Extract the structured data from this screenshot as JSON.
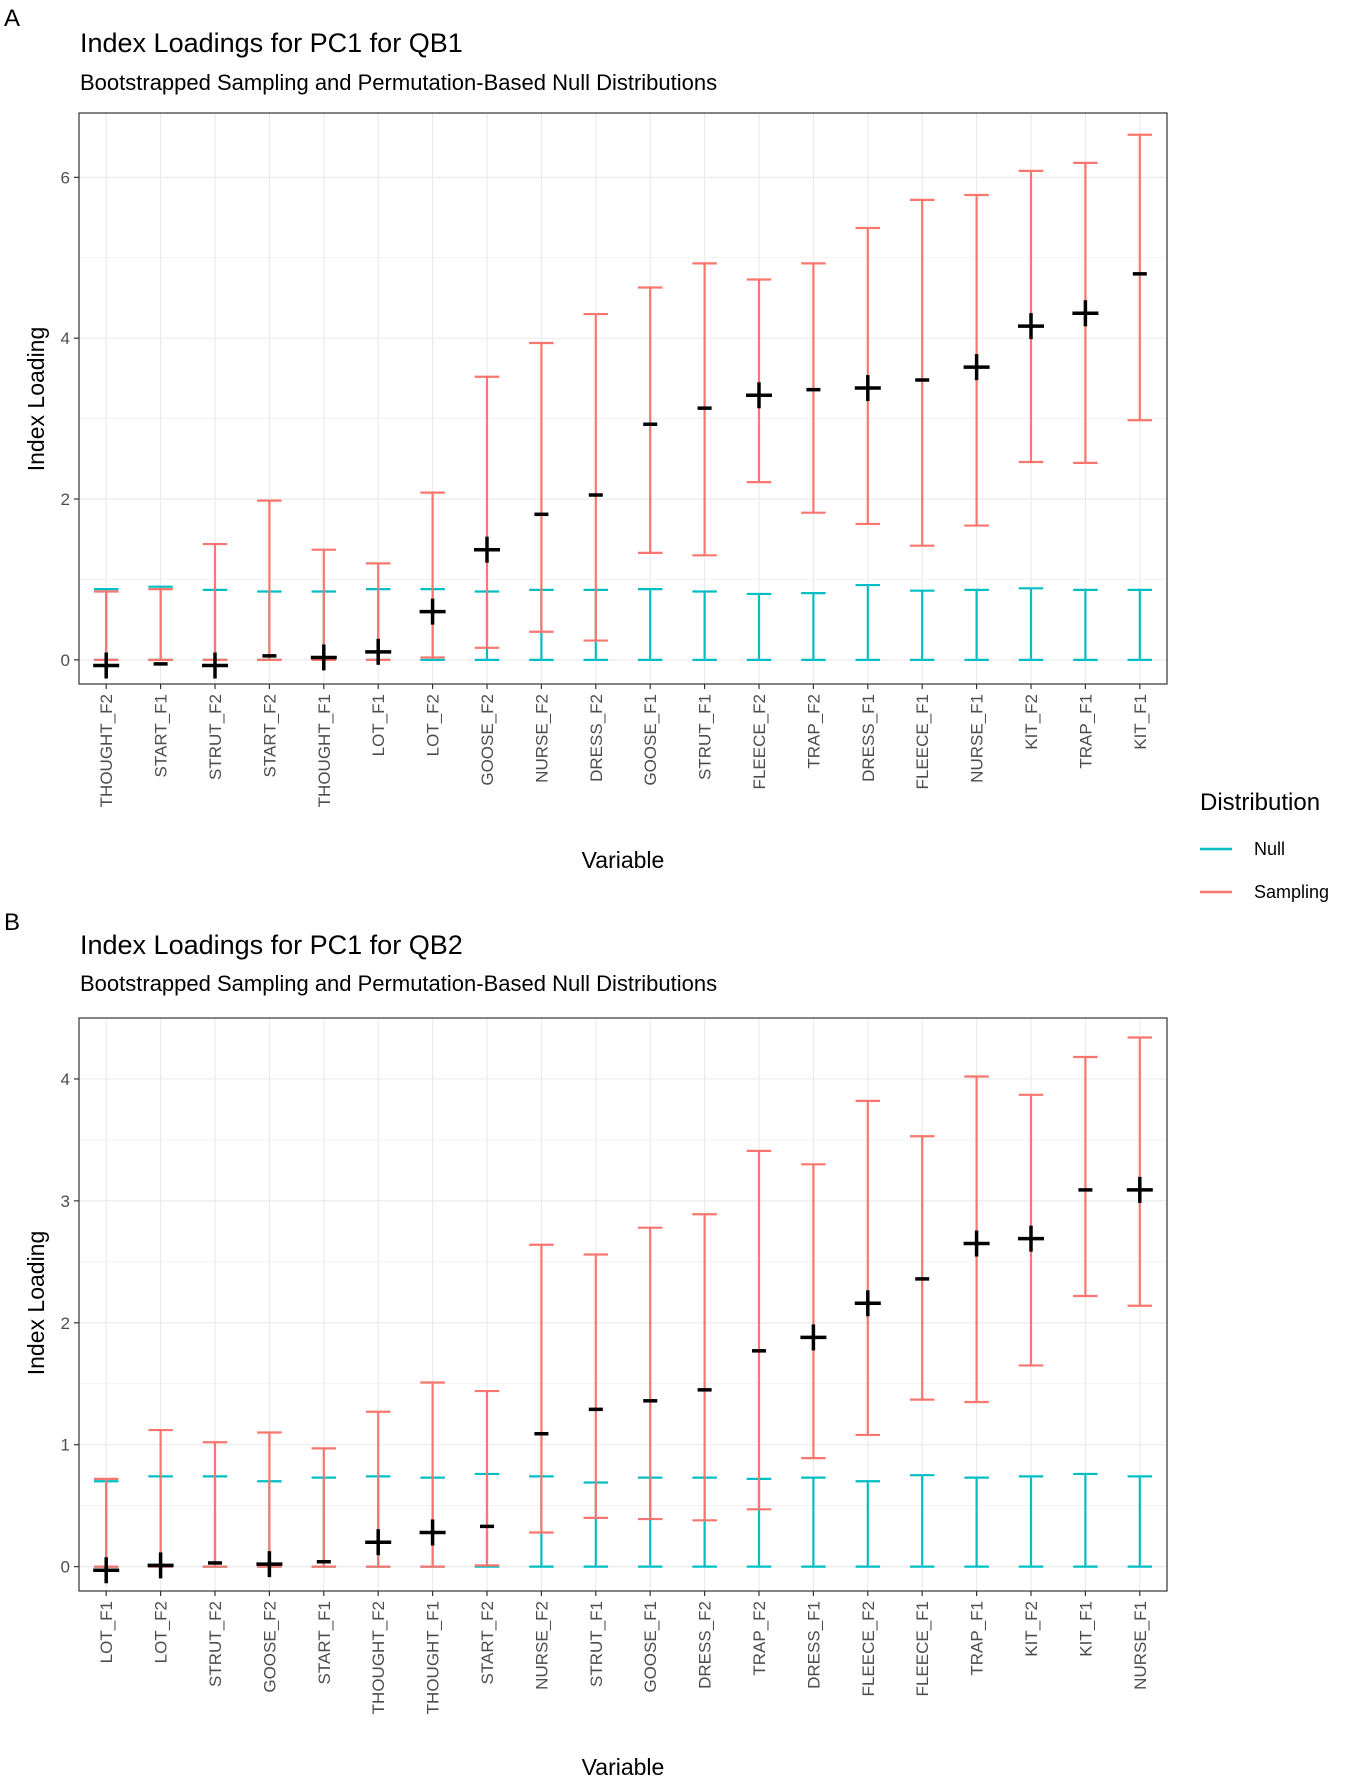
{
  "legend": {
    "title": "Distribution",
    "items": [
      {
        "label": "Null",
        "color": "#00BFC4"
      },
      {
        "label": "Sampling",
        "color": "#F8766D"
      }
    ]
  },
  "chart_data": [
    {
      "panel_label": "A",
      "type": "errorbar",
      "title": "Index Loadings for PC1 for QB1",
      "subtitle": "Bootstrapped Sampling and Permutation-Based Null Distributions",
      "xlabel": "Variable",
      "ylabel": "Index Loading",
      "ylim": [
        -0.3,
        6.8
      ],
      "yticks": [
        0,
        2,
        4,
        6
      ],
      "grid": true,
      "legend_position": "right",
      "categories": [
        "THOUGHT_F2",
        "START_F1",
        "STRUT_F2",
        "START_F2",
        "THOUGHT_F1",
        "LOT_F1",
        "LOT_F2",
        "GOOSE_F2",
        "NURSE_F2",
        "DRESS_F2",
        "GOOSE_F1",
        "STRUT_F1",
        "FLEECE_F2",
        "TRAP_F2",
        "DRESS_F1",
        "FLEECE_F1",
        "NURSE_F1",
        "KIT_F2",
        "TRAP_F1",
        "KIT_F1"
      ],
      "series": [
        {
          "name": "Null",
          "color": "#00BFC4",
          "low": [
            0,
            0,
            0,
            0,
            0,
            0,
            0,
            0,
            0,
            0,
            0,
            0,
            0,
            0,
            0,
            0,
            0,
            0,
            0,
            0
          ],
          "high": [
            0.88,
            0.91,
            0.87,
            0.85,
            0.85,
            0.88,
            0.88,
            0.85,
            0.87,
            0.87,
            0.88,
            0.85,
            0.82,
            0.83,
            0.93,
            0.86,
            0.87,
            0.89,
            0.87,
            0.87
          ]
        },
        {
          "name": "Sampling",
          "color": "#F8766D",
          "low": [
            0,
            0,
            0,
            0,
            0,
            0,
            0.03,
            0.15,
            0.35,
            0.24,
            1.33,
            1.3,
            2.21,
            1.83,
            1.69,
            1.42,
            1.67,
            2.46,
            2.45,
            2.98
          ],
          "high": [
            0.85,
            0.88,
            1.44,
            1.98,
            1.37,
            1.2,
            2.08,
            3.52,
            3.94,
            4.3,
            4.63,
            4.93,
            4.73,
            4.93,
            5.37,
            5.72,
            5.78,
            6.08,
            6.18,
            6.53
          ]
        }
      ],
      "point_estimate": [
        -0.07,
        -0.05,
        -0.07,
        0.05,
        0.03,
        0.1,
        0.6,
        1.37,
        1.81,
        2.05,
        2.93,
        3.13,
        3.29,
        3.36,
        3.38,
        3.48,
        3.64,
        4.15,
        4.31,
        4.8
      ],
      "point_style": [
        "plus",
        "dash",
        "plus",
        "dash",
        "plus",
        "plus",
        "plus",
        "plus",
        "dash",
        "dash",
        "dash",
        "dash",
        "plus",
        "dash",
        "plus",
        "dash",
        "plus",
        "plus",
        "plus",
        "dash"
      ]
    },
    {
      "panel_label": "B",
      "type": "errorbar",
      "title": "Index Loadings for PC1 for QB2",
      "subtitle": "Bootstrapped Sampling and Permutation-Based Null Distributions",
      "xlabel": "Variable",
      "ylabel": "Index Loading",
      "ylim": [
        -0.2,
        4.5
      ],
      "yticks": [
        0,
        1,
        2,
        3,
        4
      ],
      "grid": true,
      "categories": [
        "LOT_F1",
        "LOT_F2",
        "STRUT_F2",
        "GOOSE_F2",
        "START_F1",
        "THOUGHT_F2",
        "THOUGHT_F1",
        "START_F2",
        "NURSE_F2",
        "STRUT_F1",
        "GOOSE_F1",
        "DRESS_F2",
        "TRAP_F2",
        "DRESS_F1",
        "FLEECE_F2",
        "FLEECE_F1",
        "TRAP_F1",
        "KIT_F2",
        "KIT_F1",
        "NURSE_F1"
      ],
      "series": [
        {
          "name": "Null",
          "color": "#00BFC4",
          "low": [
            0,
            0,
            0,
            0,
            0,
            0,
            0,
            0,
            0,
            0,
            0,
            0,
            0,
            0,
            0,
            0,
            0,
            0,
            0,
            0
          ],
          "high": [
            0.7,
            0.74,
            0.74,
            0.7,
            0.73,
            0.74,
            0.73,
            0.76,
            0.74,
            0.69,
            0.73,
            0.73,
            0.72,
            0.73,
            0.7,
            0.75,
            0.73,
            0.74,
            0.76,
            0.74
          ]
        },
        {
          "name": "Sampling",
          "color": "#F8766D",
          "low": [
            0,
            0,
            0,
            0,
            0,
            0,
            0,
            0.01,
            0.28,
            0.4,
            0.39,
            0.38,
            0.47,
            0.89,
            1.08,
            1.37,
            1.35,
            1.65,
            2.22,
            2.14
          ],
          "high": [
            0.72,
            1.12,
            1.02,
            1.1,
            0.97,
            1.27,
            1.51,
            1.44,
            2.64,
            2.56,
            2.78,
            2.89,
            3.41,
            3.3,
            3.82,
            3.53,
            4.02,
            3.87,
            4.18,
            4.34
          ]
        }
      ],
      "point_estimate": [
        -0.03,
        0.01,
        0.03,
        0.02,
        0.04,
        0.2,
        0.28,
        0.33,
        1.09,
        1.29,
        1.36,
        1.45,
        1.77,
        1.88,
        2.16,
        2.36,
        2.65,
        2.69,
        3.09,
        3.09
      ],
      "point_style": [
        "plus",
        "plus",
        "dash",
        "plus",
        "dash",
        "plus",
        "plus",
        "dash",
        "dash",
        "dash",
        "dash",
        "dash",
        "dash",
        "plus",
        "plus",
        "dash",
        "plus",
        "plus",
        "dash",
        "plus"
      ]
    }
  ]
}
